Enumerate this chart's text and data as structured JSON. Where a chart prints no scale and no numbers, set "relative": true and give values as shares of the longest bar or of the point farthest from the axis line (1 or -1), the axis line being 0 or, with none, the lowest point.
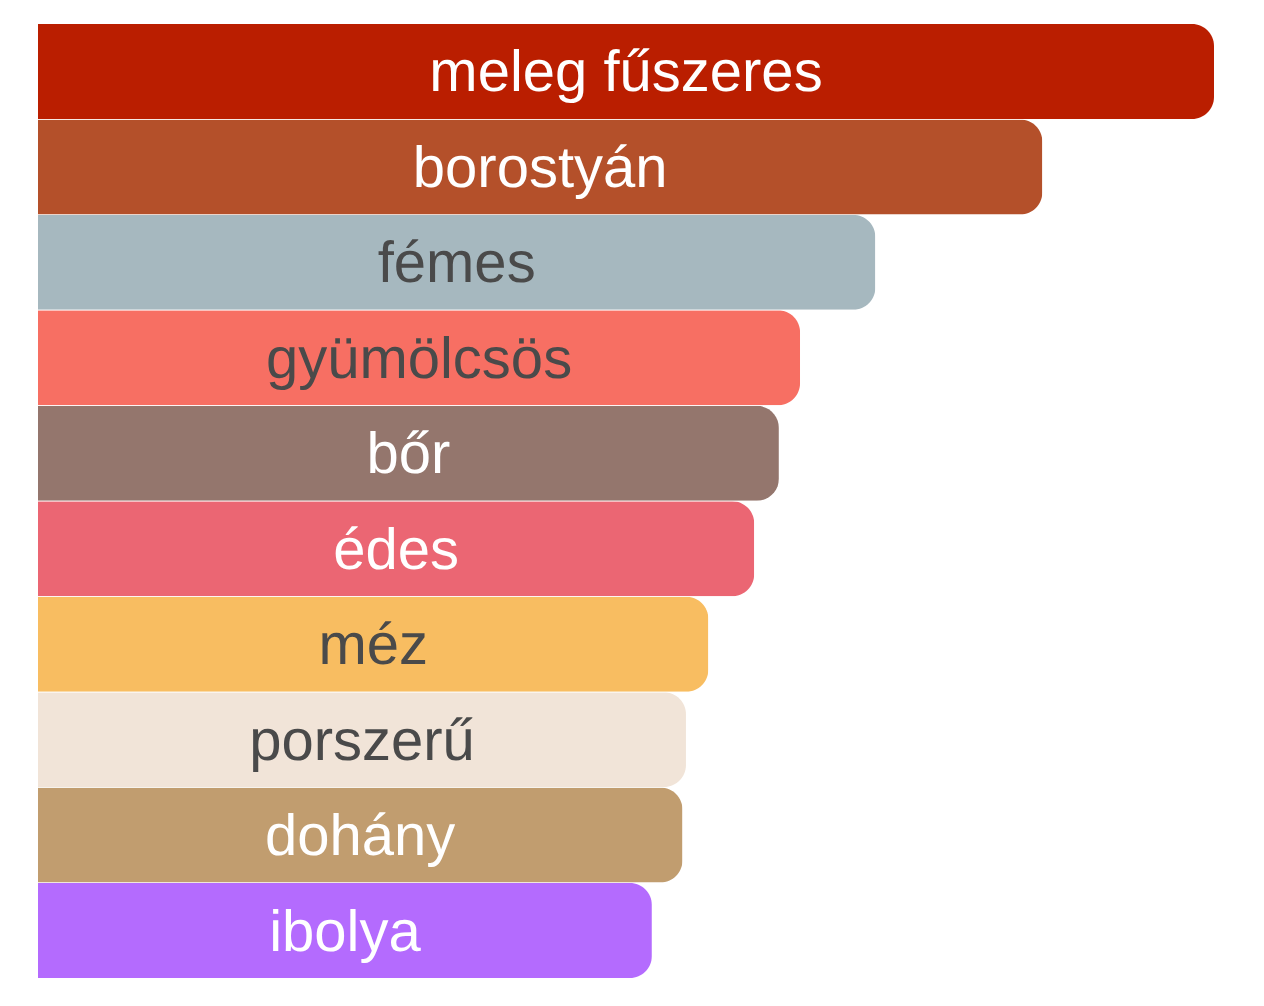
{
  "chart_data": {
    "type": "bar",
    "orientation": "horizontal",
    "relative": true,
    "categories": [
      "meleg fűszeres",
      "borostyán",
      "fémes",
      "gyümölcsös",
      "bőr",
      "édes",
      "méz",
      "porszerű",
      "dohány",
      "ibolya"
    ],
    "values": [
      1,
      0.854,
      0.712,
      0.648,
      0.63,
      0.609,
      0.57,
      0.551,
      0.548,
      0.522
    ],
    "colors": [
      "#ba1e00",
      "#b4502a",
      "#a6b8bf",
      "#f76f63",
      "#94766d",
      "#eb6673",
      "#f8bd61",
      "#f1e4d8",
      "#c19d6f",
      "#b46bfe"
    ]
  }
}
